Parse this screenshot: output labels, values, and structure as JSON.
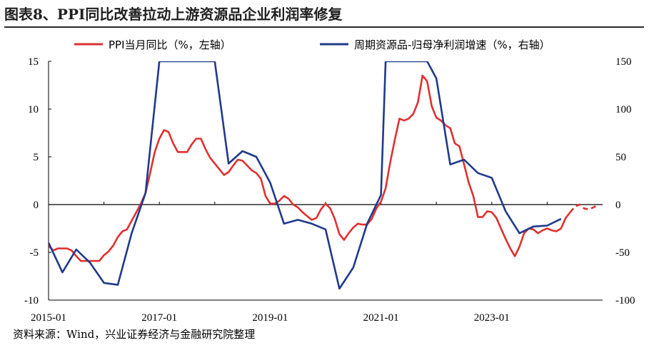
{
  "title": "图表8、PPI同比改善拉动上游资源品企业利润率修复",
  "source": "资料来源：Wind，兴业证券经济与金融研究院整理",
  "chart_data": {
    "type": "line",
    "legend_position": "top",
    "grid": false,
    "x_tick_labels": [
      "2015-01",
      "2017-01",
      "2019-01",
      "2021-01",
      "2023-01"
    ],
    "x_range": [
      "2015-01",
      "2024-12"
    ],
    "y_left_ticks": [
      "15",
      "10",
      "5",
      "0",
      "-5",
      "-10"
    ],
    "y_right_ticks": [
      "150",
      "100",
      "50",
      "0",
      "-50",
      "-100"
    ],
    "ylim_left": [
      -10,
      15
    ],
    "ylim_right": [
      -100,
      150
    ],
    "series": [
      {
        "name": "PPI当月同比（%，左轴）",
        "axis": "left",
        "color": "#e03030",
        "points": [
          [
            "2015-01",
            -4.3
          ],
          [
            "2015-02",
            -4.8
          ],
          [
            "2015-03",
            -4.6
          ],
          [
            "2015-04",
            -4.6
          ],
          [
            "2015-05",
            -4.6
          ],
          [
            "2015-06",
            -4.8
          ],
          [
            "2015-07",
            -5.4
          ],
          [
            "2015-08",
            -5.9
          ],
          [
            "2015-09",
            -5.9
          ],
          [
            "2015-10",
            -5.9
          ],
          [
            "2015-11",
            -5.9
          ],
          [
            "2015-12",
            -5.9
          ],
          [
            "2016-01",
            -5.3
          ],
          [
            "2016-02",
            -4.9
          ],
          [
            "2016-03",
            -4.3
          ],
          [
            "2016-04",
            -3.4
          ],
          [
            "2016-05",
            -2.8
          ],
          [
            "2016-06",
            -2.6
          ],
          [
            "2016-07",
            -1.7
          ],
          [
            "2016-08",
            -0.8
          ],
          [
            "2016-09",
            0.1
          ],
          [
            "2016-10",
            1.2
          ],
          [
            "2016-11",
            3.3
          ],
          [
            "2016-12",
            5.5
          ],
          [
            "2017-01",
            6.9
          ],
          [
            "2017-02",
            7.8
          ],
          [
            "2017-03",
            7.6
          ],
          [
            "2017-04",
            6.4
          ],
          [
            "2017-05",
            5.5
          ],
          [
            "2017-06",
            5.5
          ],
          [
            "2017-07",
            5.5
          ],
          [
            "2017-08",
            6.3
          ],
          [
            "2017-09",
            6.9
          ],
          [
            "2017-10",
            6.9
          ],
          [
            "2017-11",
            5.8
          ],
          [
            "2017-12",
            4.9
          ],
          [
            "2018-01",
            4.3
          ],
          [
            "2018-02",
            3.7
          ],
          [
            "2018-03",
            3.1
          ],
          [
            "2018-04",
            3.4
          ],
          [
            "2018-05",
            4.1
          ],
          [
            "2018-06",
            4.7
          ],
          [
            "2018-07",
            4.6
          ],
          [
            "2018-08",
            4.1
          ],
          [
            "2018-09",
            3.6
          ],
          [
            "2018-10",
            3.3
          ],
          [
            "2018-11",
            2.7
          ],
          [
            "2018-12",
            0.9
          ],
          [
            "2019-01",
            0.1
          ],
          [
            "2019-02",
            0.1
          ],
          [
            "2019-03",
            0.4
          ],
          [
            "2019-04",
            0.9
          ],
          [
            "2019-05",
            0.6
          ],
          [
            "2019-06",
            0.0
          ],
          [
            "2019-07",
            -0.3
          ],
          [
            "2019-08",
            -0.8
          ],
          [
            "2019-09",
            -1.2
          ],
          [
            "2019-10",
            -1.6
          ],
          [
            "2019-11",
            -1.4
          ],
          [
            "2019-12",
            -0.5
          ],
          [
            "2020-01",
            0.1
          ],
          [
            "2020-02",
            -0.4
          ],
          [
            "2020-03",
            -1.5
          ],
          [
            "2020-04",
            -3.1
          ],
          [
            "2020-05",
            -3.7
          ],
          [
            "2020-06",
            -3.0
          ],
          [
            "2020-07",
            -2.4
          ],
          [
            "2020-08",
            -2.0
          ],
          [
            "2020-09",
            -2.1
          ],
          [
            "2020-10",
            -2.1
          ],
          [
            "2020-11",
            -1.5
          ],
          [
            "2020-12",
            -0.4
          ],
          [
            "2021-01",
            0.3
          ],
          [
            "2021-02",
            1.7
          ],
          [
            "2021-03",
            4.4
          ],
          [
            "2021-04",
            6.8
          ],
          [
            "2021-05",
            9.0
          ],
          [
            "2021-06",
            8.8
          ],
          [
            "2021-07",
            9.0
          ],
          [
            "2021-08",
            9.5
          ],
          [
            "2021-09",
            10.7
          ],
          [
            "2021-10",
            13.5
          ],
          [
            "2021-11",
            12.9
          ],
          [
            "2021-12",
            10.3
          ],
          [
            "2022-01",
            9.1
          ],
          [
            "2022-02",
            8.8
          ],
          [
            "2022-03",
            8.3
          ],
          [
            "2022-04",
            8.0
          ],
          [
            "2022-05",
            6.4
          ],
          [
            "2022-06",
            6.1
          ],
          [
            "2022-07",
            4.2
          ],
          [
            "2022-08",
            2.3
          ],
          [
            "2022-09",
            0.9
          ],
          [
            "2022-10",
            -1.3
          ],
          [
            "2022-11",
            -1.3
          ],
          [
            "2022-12",
            -0.7
          ],
          [
            "2023-01",
            -0.8
          ],
          [
            "2023-02",
            -1.4
          ],
          [
            "2023-03",
            -2.5
          ],
          [
            "2023-04",
            -3.6
          ],
          [
            "2023-05",
            -4.6
          ],
          [
            "2023-06",
            -5.4
          ],
          [
            "2023-07",
            -4.4
          ],
          [
            "2023-08",
            -3.0
          ],
          [
            "2023-09",
            -2.5
          ],
          [
            "2023-10",
            -2.6
          ],
          [
            "2023-11",
            -3.0
          ],
          [
            "2023-12",
            -2.7
          ],
          [
            "2024-01",
            -2.5
          ],
          [
            "2024-02",
            -2.7
          ],
          [
            "2024-03",
            -2.8
          ],
          [
            "2024-04",
            -2.5
          ],
          [
            "2024-05",
            -1.4
          ],
          [
            "2024-06",
            -0.8
          ]
        ],
        "dashed_points": [
          [
            "2024-06",
            -0.8
          ],
          [
            "2024-07",
            -0.2
          ],
          [
            "2024-08",
            0.0
          ],
          [
            "2024-09",
            -0.4
          ],
          [
            "2024-10",
            -0.5
          ],
          [
            "2024-11",
            -0.3
          ],
          [
            "2024-12",
            0.0
          ]
        ]
      },
      {
        "name": "周期资源品-归母净利润增速（%，右轴）",
        "axis": "right",
        "color": "#1f3a8a",
        "points": [
          [
            "2015-01",
            -40
          ],
          [
            "2015-04",
            -71
          ],
          [
            "2015-07",
            -47
          ],
          [
            "2015-10",
            -61
          ],
          [
            "2016-01",
            -82
          ],
          [
            "2016-04",
            -84
          ],
          [
            "2016-07",
            -30
          ],
          [
            "2016-10",
            12
          ],
          [
            "2017-01",
            150
          ],
          [
            "2018-01",
            150
          ],
          [
            "2018-04",
            43
          ],
          [
            "2018-07",
            56
          ],
          [
            "2018-10",
            50
          ],
          [
            "2019-01",
            23
          ],
          [
            "2019-04",
            -20
          ],
          [
            "2019-07",
            -16
          ],
          [
            "2019-10",
            -20
          ],
          [
            "2020-01",
            -26
          ],
          [
            "2020-04",
            -88
          ],
          [
            "2020-07",
            -66
          ],
          [
            "2020-10",
            -20
          ],
          [
            "2021-01",
            10
          ],
          [
            "2021-02",
            150
          ],
          [
            "2021-11",
            150
          ],
          [
            "2022-01",
            132
          ],
          [
            "2022-04",
            42
          ],
          [
            "2022-07",
            47
          ],
          [
            "2022-10",
            33
          ],
          [
            "2023-01",
            28
          ],
          [
            "2023-04",
            -7
          ],
          [
            "2023-07",
            -30
          ],
          [
            "2023-10",
            -23
          ],
          [
            "2024-01",
            -22
          ],
          [
            "2024-04",
            -15
          ]
        ]
      }
    ]
  }
}
